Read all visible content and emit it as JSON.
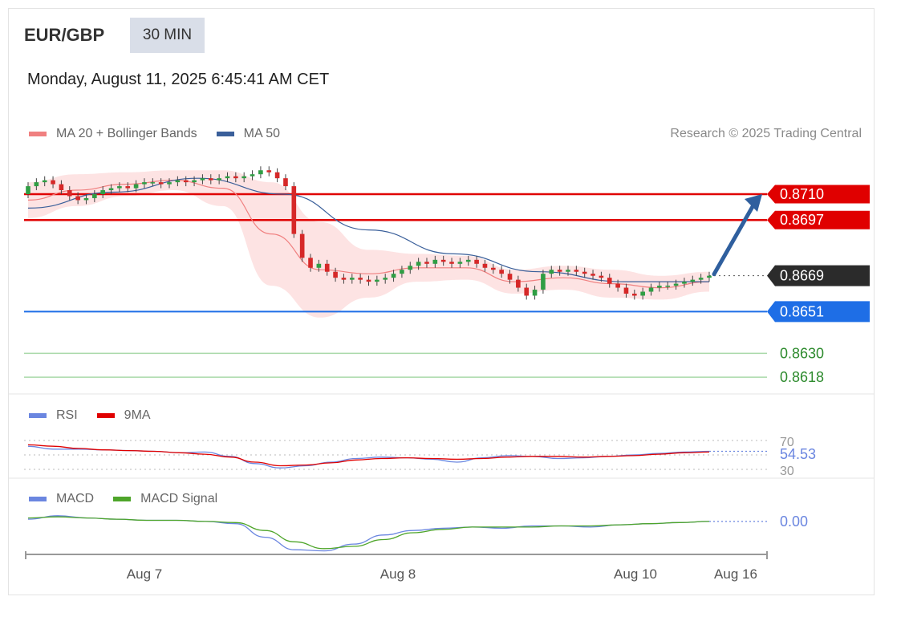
{
  "header": {
    "symbol": "EUR/GBP",
    "timeframe": "30 MIN",
    "datetime": "Monday, August 11, 2025 6:45:41 AM CET",
    "credit": "Research © 2025 Trading Central"
  },
  "colors": {
    "ma20": "#f08080",
    "bollinger_fill": "#fde0e0",
    "ma50": "#3a5f9a",
    "resistance": "#e00000",
    "last_price": "#2b2b2b",
    "pivot": "#1e6ee6",
    "support": "#2e8b2e",
    "support_line": "#a9d9a9",
    "rsi": "#6b86e0",
    "rsi_ma": "#e00000",
    "macd": "#6b86e0",
    "macd_signal": "#4ea52a",
    "candle_up": "#2f9e44",
    "candle_down": "#d62828",
    "arrow": "#2f5f9e"
  },
  "legends": {
    "price": [
      {
        "name": "MA 20 + Bollinger Bands",
        "color": "#f08080"
      },
      {
        "name": "MA 50",
        "color": "#3a5f9a"
      }
    ],
    "rsi": [
      {
        "name": "RSI",
        "color": "#6b86e0"
      },
      {
        "name": "9MA",
        "color": "#e00000"
      }
    ],
    "macd": [
      {
        "name": "MACD",
        "color": "#6b86e0"
      },
      {
        "name": "MACD Signal",
        "color": "#4ea52a"
      }
    ]
  },
  "chart_data": [
    {
      "type": "candlestick",
      "title": "EUR/GBP",
      "x_ticks": [
        "Aug 7",
        "Aug 8",
        "Aug 10",
        "Aug 16"
      ],
      "ylim": [
        0.861,
        0.8735
      ],
      "closes": [
        0.8714,
        0.8716,
        0.8717,
        0.8715,
        0.8712,
        0.8709,
        0.8707,
        0.8708,
        0.871,
        0.8712,
        0.8713,
        0.8714,
        0.8713,
        0.8715,
        0.8716,
        0.8716,
        0.8715,
        0.8716,
        0.8717,
        0.8716,
        0.8717,
        0.8718,
        0.8717,
        0.8718,
        0.8719,
        0.8718,
        0.8719,
        0.872,
        0.8722,
        0.8721,
        0.8718,
        0.8714,
        0.869,
        0.8678,
        0.8673,
        0.8675,
        0.8671,
        0.8668,
        0.8667,
        0.8668,
        0.8667,
        0.8666,
        0.8667,
        0.8668,
        0.867,
        0.8672,
        0.8674,
        0.8676,
        0.8675,
        0.8677,
        0.8676,
        0.8675,
        0.8676,
        0.8677,
        0.8675,
        0.8673,
        0.8672,
        0.867,
        0.8667,
        0.8663,
        0.8659,
        0.8662,
        0.867,
        0.8672,
        0.8671,
        0.8672,
        0.8671,
        0.867,
        0.8669,
        0.8668,
        0.8665,
        0.8663,
        0.866,
        0.8659,
        0.8661,
        0.8663,
        0.8664,
        0.8664,
        0.8665,
        0.8666,
        0.8667,
        0.8668,
        0.8669
      ],
      "series": [
        {
          "name": "MA 20 + Bollinger Bands",
          "values": [
            0.8707,
            0.8712,
            0.8715,
            0.8717,
            0.8713,
            0.869,
            0.8672,
            0.867,
            0.8673,
            0.8673,
            0.8666,
            0.8668,
            0.8665,
            0.8663,
            0.8666
          ]
        },
        {
          "name": "MA 50",
          "values": [
            0.8703,
            0.8711,
            0.8718,
            0.871,
            0.8692,
            0.868,
            0.8671,
            0.8666,
            0.8666
          ]
        }
      ],
      "levels": [
        {
          "label": "0.8710",
          "value": 0.871,
          "kind": "resistance"
        },
        {
          "label": "0.8697",
          "value": 0.8697,
          "kind": "resistance"
        },
        {
          "label": "0.8669",
          "value": 0.8669,
          "kind": "last"
        },
        {
          "label": "0.8651",
          "value": 0.8651,
          "kind": "pivot"
        },
        {
          "label": "0.8630",
          "value": 0.863,
          "kind": "support"
        },
        {
          "label": "0.8618",
          "value": 0.8618,
          "kind": "support"
        }
      ]
    },
    {
      "type": "line",
      "legend": [
        "RSI",
        "9MA"
      ],
      "ylim": [
        20,
        80
      ],
      "ref_lines": [
        70,
        50,
        30
      ],
      "tick_labels": [
        "70",
        "30"
      ],
      "last_value_label": "54.53",
      "series": [
        {
          "name": "RSI",
          "values": [
            62,
            58,
            58,
            57,
            56,
            55,
            53,
            54,
            48,
            38,
            32,
            35,
            40,
            45,
            47,
            46,
            44,
            40,
            46,
            49,
            48,
            45,
            46,
            48,
            50,
            52,
            54,
            55
          ]
        },
        {
          "name": "9MA",
          "values": [
            64,
            62,
            59,
            57,
            56,
            55,
            53,
            51,
            47,
            40,
            35,
            36,
            39,
            43,
            45,
            46,
            45,
            44,
            45,
            47,
            48,
            48,
            47,
            48,
            49,
            51,
            53,
            54
          ]
        }
      ]
    },
    {
      "type": "line",
      "legend": [
        "MACD",
        "MACD Signal"
      ],
      "last_value_label": "0.00",
      "series": [
        {
          "name": "MACD",
          "values": [
            0.0002,
            0.0005,
            0.0003,
            0.0002,
            0.0001,
            0.0001,
            0.0,
            -0.0002,
            -0.0014,
            -0.0025,
            -0.0026,
            -0.002,
            -0.0012,
            -0.0008,
            -0.0006,
            -0.0005,
            -0.0006,
            -0.0004,
            -0.0004,
            -0.0005,
            -0.0003,
            -0.0002,
            -0.0001,
            0.0
          ]
        },
        {
          "name": "MACD Signal",
          "values": [
            0.0003,
            0.0004,
            0.0003,
            0.0002,
            0.0001,
            0.0001,
            0.0,
            -0.0001,
            -0.0008,
            -0.0018,
            -0.0024,
            -0.0022,
            -0.0016,
            -0.001,
            -0.0007,
            -0.0005,
            -0.0005,
            -0.0005,
            -0.0004,
            -0.0004,
            -0.0003,
            -0.0002,
            -0.0001,
            0.0
          ]
        }
      ]
    }
  ]
}
